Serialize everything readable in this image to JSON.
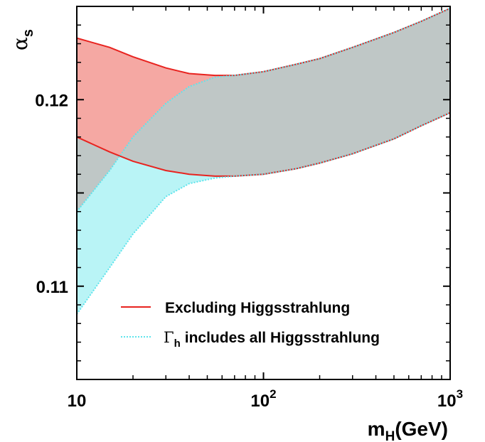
{
  "chart_data": {
    "type": "area",
    "x_scale": "log",
    "xlim": [
      10,
      1000
    ],
    "ylim": [
      0.105,
      0.125
    ],
    "x_ticks": [
      {
        "value": 10,
        "base": "10",
        "exp": ""
      },
      {
        "value": 100,
        "base": "10",
        "exp": "2"
      },
      {
        "value": 1000,
        "base": "10",
        "exp": "3"
      }
    ],
    "y_ticks": [
      {
        "value": 0.11,
        "label": "0.11"
      },
      {
        "value": 0.12,
        "label": "0.12"
      }
    ],
    "xlabel": {
      "main": "m",
      "sub": "H",
      "rest": "(GeV)"
    },
    "ylabel": {
      "main": "α",
      "sub": "s"
    },
    "grid": false,
    "legend_position": "lower-center",
    "series": [
      {
        "name": "Excluding Higgsstrahlung",
        "color": "#e8231f",
        "fill": "#f5a8a3",
        "line_style": "solid",
        "x": [
          10,
          15,
          20,
          30,
          40,
          55,
          70,
          100,
          150,
          200,
          300,
          500,
          700,
          1000
        ],
        "upper": [
          0.1233,
          0.1228,
          0.1223,
          0.1217,
          0.1214,
          0.1213,
          0.1213,
          0.1215,
          0.1219,
          0.1222,
          0.1228,
          0.1236,
          0.1242,
          0.1249
        ],
        "lower": [
          0.118,
          0.1172,
          0.1167,
          0.1162,
          0.116,
          0.1159,
          0.1159,
          0.116,
          0.1163,
          0.1166,
          0.1171,
          0.1179,
          0.1186,
          0.1193
        ]
      },
      {
        "name": "includes all Higgsstrahlung",
        "name_prefix": "Γ",
        "name_sub": "h",
        "color": "#5ee4ec",
        "fill": "#b9f4f6",
        "line_style": "dotted",
        "x": [
          10,
          15,
          20,
          30,
          40,
          55,
          70,
          100,
          150,
          200,
          300,
          500,
          700,
          1000
        ],
        "upper": [
          0.114,
          0.1162,
          0.118,
          0.1198,
          0.1207,
          0.1212,
          0.1213,
          0.1215,
          0.1219,
          0.1222,
          0.1228,
          0.1236,
          0.1242,
          0.1249
        ],
        "lower": [
          0.1085,
          0.111,
          0.1128,
          0.1148,
          0.1155,
          0.1158,
          0.1159,
          0.116,
          0.1163,
          0.1166,
          0.1171,
          0.1179,
          0.1186,
          0.1193
        ]
      }
    ],
    "overlap_fill": "#bfc7c6"
  }
}
